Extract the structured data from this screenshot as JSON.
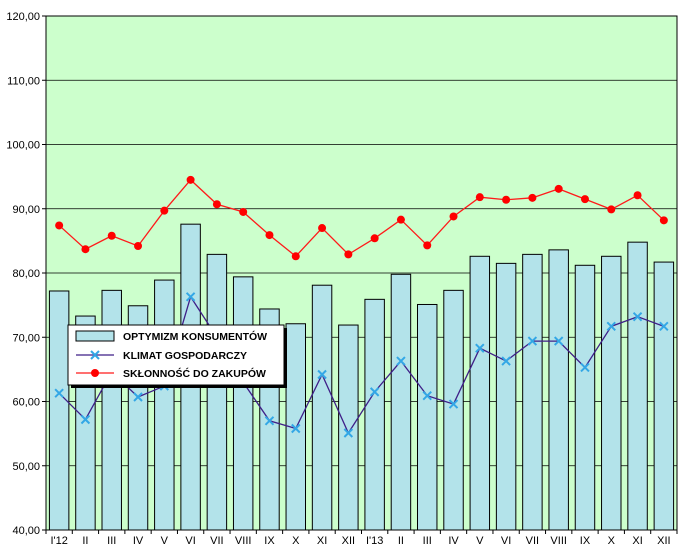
{
  "chart_data": {
    "type": "bar+line",
    "categories": [
      "I'12",
      "II",
      "III",
      "IV",
      "V",
      "VI",
      "VII",
      "VIII",
      "IX",
      "X",
      "XI",
      "XII",
      "I'13",
      "II",
      "III",
      "IV",
      "V",
      "VI",
      "VII",
      "VIII",
      "IX",
      "X",
      "XI",
      "XII"
    ],
    "ylim": [
      40,
      120
    ],
    "yticks": [
      "40,00",
      "50,00",
      "60,00",
      "70,00",
      "80,00",
      "90,00",
      "100,00",
      "110,00",
      "120,00"
    ],
    "ytick_values": [
      40,
      50,
      60,
      70,
      80,
      90,
      100,
      110,
      120
    ],
    "grid": "horizontal",
    "legend_position": "middle-left",
    "series": [
      {
        "name": "OPTYMIZM KONSUMENTÓW",
        "kind": "bar",
        "values": [
          77.2,
          73.3,
          77.3,
          74.9,
          78.9,
          87.6,
          82.9,
          79.4,
          74.4,
          72.1,
          78.1,
          71.9,
          75.9,
          79.8,
          75.1,
          77.3,
          82.6,
          81.5,
          82.9,
          83.6,
          81.2,
          82.6,
          84.8,
          81.7
        ]
      },
      {
        "name": "KLIMAT GOSPODARCZY",
        "kind": "line",
        "marker": "x",
        "values": [
          61.3,
          57.2,
          64.6,
          60.7,
          62.4,
          76.3,
          70.0,
          63.0,
          57.0,
          55.8,
          64.2,
          55.1,
          61.5,
          66.3,
          60.9,
          59.6,
          68.3,
          66.3,
          69.4,
          69.4,
          65.3,
          71.7,
          73.2,
          71.7
        ]
      },
      {
        "name": "SKŁONNOŚĆ DO ZAKUPÓW",
        "kind": "line",
        "marker": "dot",
        "values": [
          87.4,
          83.7,
          85.8,
          84.2,
          89.7,
          94.5,
          90.7,
          89.5,
          85.9,
          82.6,
          87.0,
          82.9,
          85.4,
          88.3,
          84.3,
          88.8,
          91.8,
          91.4,
          91.7,
          93.1,
          91.5,
          89.9,
          92.1,
          88.2
        ]
      }
    ]
  },
  "colors": {
    "plot_bg": "#ccffcc",
    "bar_fill": "#b3e3ea",
    "bar_stroke": "#000000",
    "klimat_line": "#3f1f88",
    "klimat_marker": "#33a7e6",
    "zakupy_line": "#ff1a1a",
    "zakupy_marker": "#ff0000",
    "grid": "#000000"
  }
}
